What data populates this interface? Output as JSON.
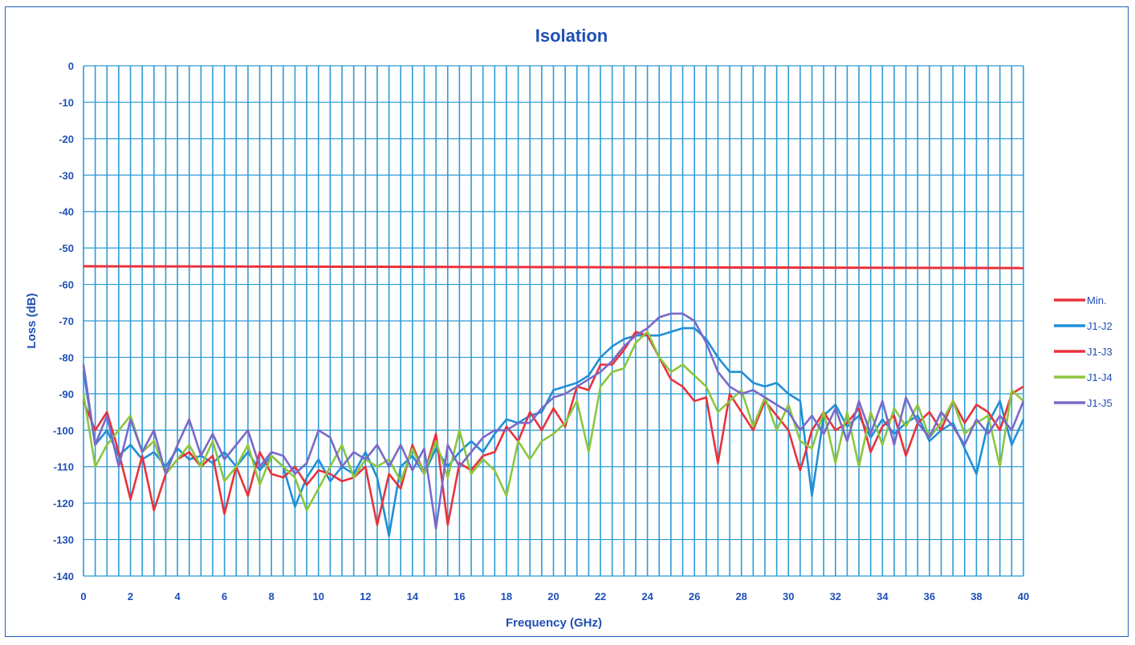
{
  "chart_data": {
    "type": "line",
    "title": "Isolation",
    "xlabel": "Frequency (GHz)",
    "ylabel": "Loss (dB)",
    "xlim": [
      0,
      40
    ],
    "ylim": [
      -140,
      0
    ],
    "xticks": [
      "0",
      "2",
      "4",
      "6",
      "8",
      "10",
      "12",
      "14",
      "16",
      "18",
      "20",
      "22",
      "24",
      "26",
      "28",
      "30",
      "32",
      "34",
      "36",
      "38",
      "40"
    ],
    "yticks": [
      "0",
      "-10",
      "-20",
      "-30",
      "-40",
      "-50",
      "-60",
      "-70",
      "-80",
      "-90",
      "-100",
      "-110",
      "-120",
      "-130",
      "-140"
    ],
    "grid": true,
    "legend_position": "right",
    "series": [
      {
        "name": "Min.",
        "color": "#e8323c",
        "x": [
          0,
          40
        ],
        "y": [
          -55,
          -55.5
        ]
      },
      {
        "name": "J1-J2",
        "color": "#1f8fd6",
        "x": [
          0,
          0.5,
          1,
          1.5,
          2,
          2.5,
          3,
          3.5,
          4,
          4.5,
          5,
          5.5,
          6,
          6.5,
          7,
          7.5,
          8,
          8.5,
          9,
          9.5,
          10,
          10.5,
          11,
          11.5,
          12,
          12.5,
          13,
          13.5,
          14,
          14.5,
          15,
          15.5,
          16,
          16.5,
          17,
          17.5,
          18,
          18.5,
          19,
          19.5,
          20,
          20.5,
          21,
          21.5,
          22,
          22.5,
          23,
          23.5,
          24,
          24.5,
          25,
          25.5,
          26,
          26.5,
          27,
          27.5,
          28,
          28.5,
          29,
          29.5,
          30,
          30.5,
          31,
          31.5,
          32,
          32.5,
          33,
          33.5,
          34,
          34.5,
          35,
          35.5,
          36,
          36.5,
          37,
          37.5,
          38,
          38.5,
          39,
          39.5,
          40
        ],
        "y": [
          -84,
          -104,
          -100,
          -107,
          -104,
          -108,
          -106,
          -110,
          -105,
          -108,
          -107,
          -109,
          -106,
          -110,
          -106,
          -111,
          -107,
          -110,
          -121,
          -113,
          -108,
          -114,
          -110,
          -112,
          -106,
          -113,
          -129,
          -110,
          -107,
          -112,
          -105,
          -110,
          -106,
          -103,
          -106,
          -101,
          -97,
          -98,
          -96,
          -95,
          -89,
          -88,
          -87,
          -85,
          -80,
          -77,
          -75,
          -74,
          -74,
          -74,
          -73,
          -72,
          -72,
          -75,
          -80,
          -84,
          -84,
          -87,
          -88,
          -87,
          -90,
          -92,
          -118,
          -96,
          -93,
          -99,
          -96,
          -102,
          -97,
          -101,
          -98,
          -96,
          -103,
          -100,
          -98,
          -105,
          -112,
          -98,
          -92,
          -104,
          -97
        ]
      },
      {
        "name": "J1-J3",
        "color": "#e8323c",
        "x": [
          0,
          0.5,
          1,
          1.5,
          2,
          2.5,
          3,
          3.5,
          4,
          4.5,
          5,
          5.5,
          6,
          6.5,
          7,
          7.5,
          8,
          8.5,
          9,
          9.5,
          10,
          10.5,
          11,
          11.5,
          12,
          12.5,
          13,
          13.5,
          14,
          14.5,
          15,
          15.5,
          16,
          16.5,
          17,
          17.5,
          18,
          18.5,
          19,
          19.5,
          20,
          20.5,
          21,
          21.5,
          22,
          22.5,
          23,
          23.5,
          24,
          24.5,
          25,
          25.5,
          26,
          26.5,
          27,
          27.5,
          28,
          28.5,
          29,
          29.5,
          30,
          30.5,
          31,
          31.5,
          32,
          32.5,
          33,
          33.5,
          34,
          34.5,
          35,
          35.5,
          36,
          36.5,
          37,
          37.5,
          38,
          38.5,
          39,
          39.5,
          40
        ],
        "y": [
          -92,
          -100,
          -95,
          -106,
          -119,
          -107,
          -122,
          -112,
          -108,
          -106,
          -110,
          -107,
          -123,
          -110,
          -118,
          -106,
          -112,
          -113,
          -110,
          -115,
          -111,
          -112,
          -114,
          -113,
          -110,
          -126,
          -112,
          -116,
          -104,
          -112,
          -101,
          -126,
          -109,
          -111,
          -107,
          -106,
          -99,
          -103,
          -95,
          -100,
          -94,
          -99,
          -88,
          -89,
          -82,
          -82,
          -78,
          -73,
          -74,
          -80,
          -86,
          -88,
          -92,
          -91,
          -109,
          -90,
          -95,
          -100,
          -92,
          -96,
          -100,
          -111,
          -100,
          -95,
          -100,
          -98,
          -94,
          -106,
          -99,
          -96,
          -107,
          -98,
          -95,
          -100,
          -92,
          -98,
          -93,
          -95,
          -100,
          -90,
          -88
        ]
      },
      {
        "name": "J1-J4",
        "color": "#8cc63f",
        "x": [
          0,
          0.5,
          1,
          1.5,
          2,
          2.5,
          3,
          3.5,
          4,
          4.5,
          5,
          5.5,
          6,
          6.5,
          7,
          7.5,
          8,
          8.5,
          9,
          9.5,
          10,
          10.5,
          11,
          11.5,
          12,
          12.5,
          13,
          13.5,
          14,
          14.5,
          15,
          15.5,
          16,
          16.5,
          17,
          17.5,
          18,
          18.5,
          19,
          19.5,
          20,
          20.5,
          21,
          21.5,
          22,
          22.5,
          23,
          23.5,
          24,
          24.5,
          25,
          25.5,
          26,
          26.5,
          27,
          27.5,
          28,
          28.5,
          29,
          29.5,
          30,
          30.5,
          31,
          31.5,
          32,
          32.5,
          33,
          33.5,
          34,
          34.5,
          35,
          35.5,
          36,
          36.5,
          37,
          37.5,
          38,
          38.5,
          39,
          39.5,
          40
        ],
        "y": [
          -90,
          -110,
          -104,
          -100,
          -96,
          -106,
          -103,
          -112,
          -108,
          -104,
          -110,
          -103,
          -114,
          -110,
          -104,
          -115,
          -107,
          -110,
          -113,
          -122,
          -116,
          -110,
          -104,
          -113,
          -108,
          -110,
          -108,
          -114,
          -105,
          -112,
          -103,
          -113,
          -100,
          -112,
          -108,
          -111,
          -118,
          -103,
          -108,
          -103,
          -101,
          -98,
          -92,
          -106,
          -88,
          -84,
          -83,
          -76,
          -73,
          -80,
          -84,
          -82,
          -85,
          -88,
          -95,
          -92,
          -89,
          -99,
          -91,
          -100,
          -93,
          -103,
          -105,
          -95,
          -109,
          -95,
          -110,
          -95,
          -104,
          -94,
          -99,
          -93,
          -102,
          -98,
          -92,
          -101,
          -98,
          -96,
          -110,
          -89,
          -92
        ]
      },
      {
        "name": "J1-J5",
        "color": "#7b68c8",
        "x": [
          0,
          0.5,
          1,
          1.5,
          2,
          2.5,
          3,
          3.5,
          4,
          4.5,
          5,
          5.5,
          6,
          6.5,
          7,
          7.5,
          8,
          8.5,
          9,
          9.5,
          10,
          10.5,
          11,
          11.5,
          12,
          12.5,
          13,
          13.5,
          14,
          14.5,
          15,
          15.5,
          16,
          16.5,
          17,
          17.5,
          18,
          18.5,
          19,
          19.5,
          20,
          20.5,
          21,
          21.5,
          22,
          22.5,
          23,
          23.5,
          24,
          24.5,
          25,
          25.5,
          26,
          26.5,
          27,
          27.5,
          28,
          28.5,
          29,
          29.5,
          30,
          30.5,
          31,
          31.5,
          32,
          32.5,
          33,
          33.5,
          34,
          34.5,
          35,
          35.5,
          36,
          36.5,
          37,
          37.5,
          38,
          38.5,
          39,
          39.5,
          40
        ],
        "y": [
          -82,
          -104,
          -96,
          -110,
          -97,
          -106,
          -100,
          -112,
          -104,
          -97,
          -107,
          -101,
          -108,
          -104,
          -100,
          -110,
          -106,
          -107,
          -112,
          -109,
          -100,
          -102,
          -110,
          -106,
          -108,
          -104,
          -110,
          -104,
          -111,
          -105,
          -127,
          -104,
          -110,
          -106,
          -102,
          -100,
          -100,
          -98,
          -98,
          -94,
          -91,
          -90,
          -88,
          -86,
          -84,
          -81,
          -77,
          -74,
          -72,
          -69,
          -68,
          -68,
          -70,
          -76,
          -84,
          -88,
          -90,
          -89,
          -91,
          -93,
          -95,
          -100,
          -96,
          -101,
          -94,
          -103,
          -92,
          -101,
          -92,
          -104,
          -91,
          -98,
          -102,
          -95,
          -99,
          -104,
          -97,
          -101,
          -96,
          -100,
          -92
        ]
      }
    ]
  }
}
